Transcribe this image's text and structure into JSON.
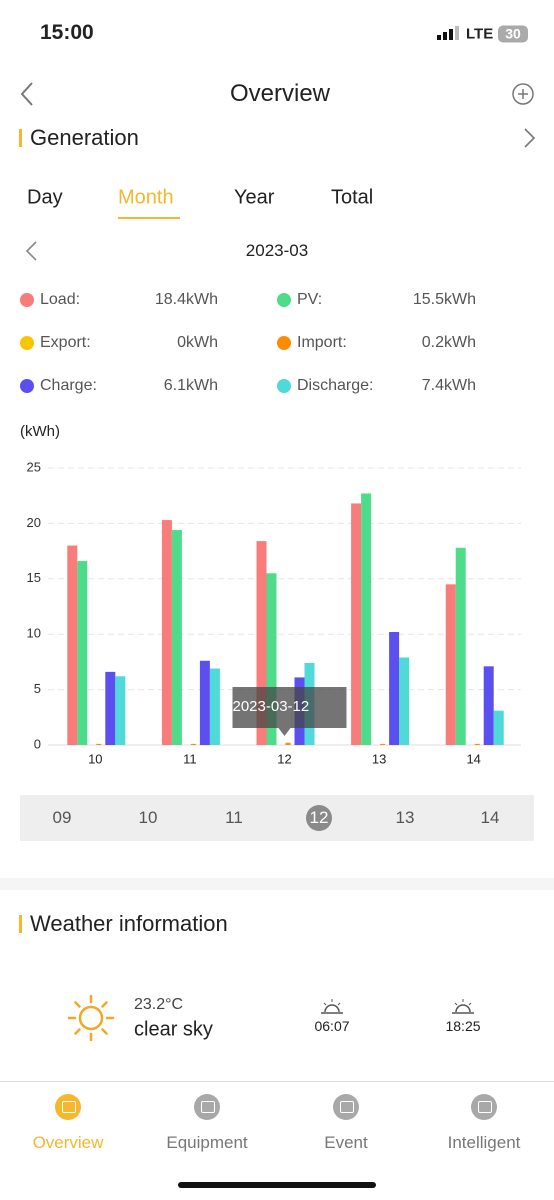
{
  "status": {
    "time": "15:00",
    "network": "LTE",
    "battery": "30"
  },
  "header": {
    "title": "Overview"
  },
  "generation": {
    "title": "Generation",
    "tabs": [
      "Day",
      "Month",
      "Year",
      "Total"
    ],
    "active_tab": 1,
    "date": "2023-03",
    "summary": [
      {
        "label": "Load:",
        "value": "18.4kWh",
        "color": "#f87c7a"
      },
      {
        "label": "PV:",
        "value": "15.5kWh",
        "color": "#4fdc8a"
      },
      {
        "label": "Export:",
        "value": "0kWh",
        "color": "#f7c600"
      },
      {
        "label": "Import:",
        "value": "0.2kWh",
        "color": "#ff8c00"
      },
      {
        "label": "Charge:",
        "value": "6.1kWh",
        "color": "#5b4ff0"
      },
      {
        "label": "Discharge:",
        "value": "7.4kWh",
        "color": "#4fd9d9"
      }
    ]
  },
  "chart_data": {
    "type": "bar",
    "y_label": "(kWh)",
    "categories": [
      "10",
      "11",
      "12",
      "13",
      "14"
    ],
    "series": [
      {
        "name": "Load",
        "color": "#f87c7a",
        "values": [
          18.0,
          20.3,
          18.4,
          21.8,
          14.5
        ]
      },
      {
        "name": "PV",
        "color": "#4fdc8a",
        "values": [
          16.6,
          19.4,
          15.5,
          22.7,
          17.8
        ]
      },
      {
        "name": "Export",
        "color": "#f7c600",
        "values": [
          0,
          0,
          0,
          0,
          0
        ]
      },
      {
        "name": "Import",
        "color": "#ff8c00",
        "values": [
          0.1,
          0.1,
          0.2,
          0.1,
          0.1
        ]
      },
      {
        "name": "Charge",
        "color": "#5b4ff0",
        "values": [
          6.6,
          7.6,
          6.1,
          10.2,
          7.1
        ]
      },
      {
        "name": "Discharge",
        "color": "#4fd9d9",
        "values": [
          6.2,
          6.9,
          7.4,
          7.9,
          3.1
        ]
      }
    ],
    "ylim": [
      0,
      25
    ],
    "yticks": [
      0,
      5,
      10,
      15,
      20,
      25
    ],
    "grid": true,
    "tooltip": {
      "category": 2,
      "label": "2023-03-12"
    }
  },
  "scroller": {
    "days": [
      "09",
      "10",
      "11",
      "12",
      "13",
      "14"
    ],
    "selected": 3
  },
  "weather": {
    "title": "Weather information",
    "temperature": "23.2°C",
    "condition": "clear sky",
    "sunrise": "06:07",
    "sunset": "18:25"
  },
  "nav": {
    "items": [
      "Overview",
      "Equipment",
      "Event",
      "Intelligent"
    ],
    "active": 0
  }
}
